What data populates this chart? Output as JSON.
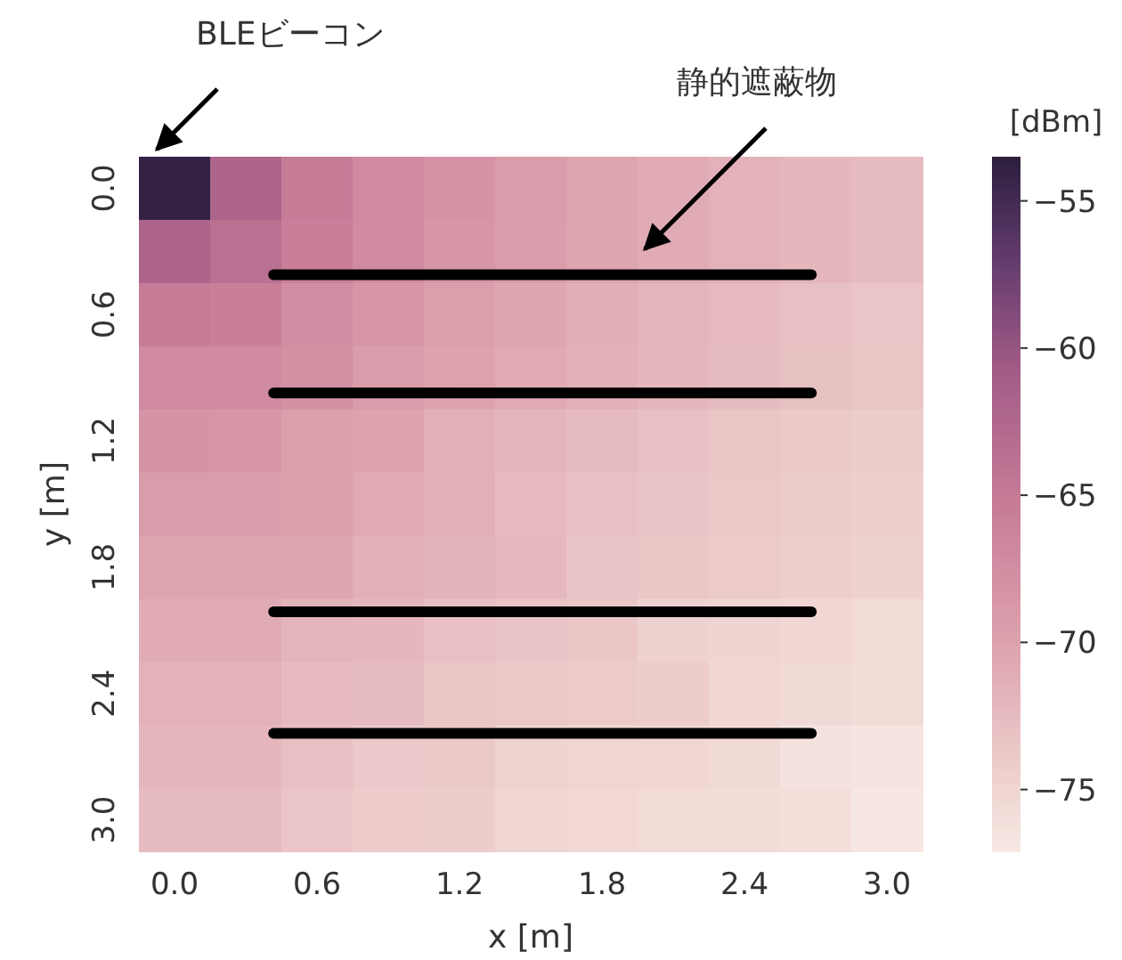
{
  "chart_data": {
    "type": "heatmap",
    "xlabel": "x [m]",
    "ylabel": "y [m]",
    "clabel": "[dBm]",
    "categories": [
      "0.0",
      null,
      "0.6",
      null,
      "1.2",
      null,
      "1.8",
      null,
      "2.4",
      null,
      "3.0"
    ],
    "y_categories": [
      "0.0",
      null,
      "0.6",
      null,
      "1.2",
      null,
      "1.8",
      null,
      "2.4",
      null,
      "3.0"
    ],
    "cells": [
      [
        -54,
        -62.0,
        -65.2,
        -67.0,
        -68.3,
        -69.3,
        -70.2,
        -70.9,
        -71.5,
        -72.0,
        -72.5
      ],
      [
        -62.0,
        -63.6,
        -65.7,
        -67.2,
        -68.5,
        -69.4,
        -70.2,
        -70.9,
        -71.5,
        -72.0,
        -72.5
      ],
      [
        -65.2,
        -65.7,
        -67.4,
        -68.5,
        -69.5,
        -70.4,
        -71.1,
        -71.8,
        -72.3,
        -72.8,
        -73.3
      ],
      [
        -67.0,
        -67.2,
        -67.8,
        -69.3,
        -70.0,
        -70.7,
        -71.4,
        -72.0,
        -72.5,
        -73.0,
        -73.4
      ],
      [
        -68.3,
        -68.5,
        -69.5,
        -70.0,
        -71.3,
        -71.9,
        -72.4,
        -72.9,
        -73.4,
        -73.8,
        -74.2
      ],
      [
        -69.3,
        -69.4,
        -69.7,
        -70.7,
        -71.2,
        -72.3,
        -72.8,
        -73.2,
        -73.6,
        -74.0,
        -74.4
      ],
      [
        -70.2,
        -70.2,
        -70.4,
        -71.4,
        -71.7,
        -72.1,
        -73.2,
        -73.5,
        -73.9,
        -74.3,
        -74.6
      ],
      [
        -70.9,
        -70.9,
        -71.8,
        -72.0,
        -72.9,
        -73.2,
        -73.5,
        -74.6,
        -74.9,
        -75.2,
        -75.5
      ],
      [
        -71.5,
        -71.5,
        -72.3,
        -72.5,
        -73.4,
        -73.6,
        -73.9,
        -74.2,
        -75.2,
        -75.4,
        -75.7
      ],
      [
        -72.0,
        -72.0,
        -72.8,
        -73.7,
        -73.8,
        -74.7,
        -75.0,
        -75.2,
        -75.4,
        -76.4,
        -76.6
      ],
      [
        -72.5,
        -72.5,
        -73.3,
        -74.1,
        -74.2,
        -75.1,
        -75.3,
        -75.5,
        -75.7,
        -75.9,
        -76.9
      ]
    ],
    "clim": [
      -77.1,
      -53.5
    ],
    "cticks": [
      -55,
      -60,
      -65,
      -70,
      -75
    ],
    "annotations": [
      "BLEビーコン",
      "静的遮蔽物"
    ]
  }
}
